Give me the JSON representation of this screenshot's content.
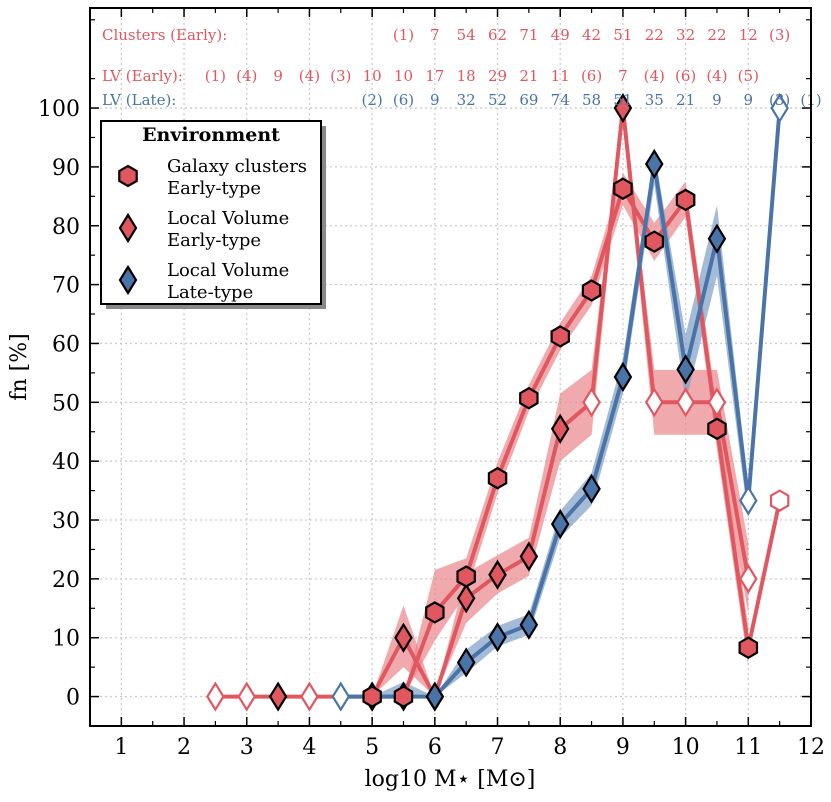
{
  "chart_data": {
    "type": "line",
    "xlabel": "log10 M⋆ [M⊙]",
    "ylabel": "fn [%]",
    "xlim": [
      0.5,
      12
    ],
    "ylim": [
      -5,
      117
    ],
    "x_ticks": [
      1,
      2,
      3,
      4,
      5,
      6,
      7,
      8,
      9,
      10,
      11,
      12
    ],
    "y_ticks": [
      0,
      10,
      20,
      30,
      40,
      50,
      60,
      70,
      80,
      90,
      100
    ],
    "grid": true,
    "legend": {
      "title": "Environment",
      "placement": "upper-left",
      "entries": [
        {
          "marker": "hexagon",
          "line1": "Galaxy clusters",
          "line2": "Early-type",
          "color": "#e05760"
        },
        {
          "marker": "diamond",
          "line1": "Local Volume",
          "line2": "Early-type",
          "color": "#e05760"
        },
        {
          "marker": "diamond",
          "line1": "Local Volume",
          "line2": "Late-type",
          "color": "#4a74a8"
        }
      ]
    },
    "series": [
      {
        "name": "Galaxy clusters Early-type",
        "marker": "hexagon",
        "color": "#e05760",
        "band_color": "#e9868c",
        "points": [
          {
            "x": 5.0,
            "y": 0,
            "filled": true
          },
          {
            "x": 5.5,
            "y": 0,
            "filled": true
          },
          {
            "x": 6.0,
            "y": 14.3,
            "filled": true
          },
          {
            "x": 6.5,
            "y": 20.4,
            "filled": true
          },
          {
            "x": 7.0,
            "y": 37.1,
            "filled": true
          },
          {
            "x": 7.5,
            "y": 50.7,
            "filled": true
          },
          {
            "x": 8.0,
            "y": 61.2,
            "filled": true
          },
          {
            "x": 8.5,
            "y": 69.0,
            "filled": true
          },
          {
            "x": 9.0,
            "y": 86.3,
            "filled": true
          },
          {
            "x": 9.5,
            "y": 77.3,
            "filled": true
          },
          {
            "x": 10.0,
            "y": 84.4,
            "filled": true
          },
          {
            "x": 10.5,
            "y": 45.5,
            "filled": true
          },
          {
            "x": 11.0,
            "y": 8.3,
            "filled": true
          },
          {
            "x": 11.5,
            "y": 33.3,
            "filled": false
          }
        ],
        "band": [
          {
            "x": 5.0,
            "lo": 0,
            "hi": 0
          },
          {
            "x": 5.5,
            "lo": 0,
            "hi": 0
          },
          {
            "x": 6.0,
            "lo": 9.5,
            "hi": 21.5
          },
          {
            "x": 6.5,
            "lo": 17.5,
            "hi": 23.5
          },
          {
            "x": 7.0,
            "lo": 34.5,
            "hi": 39.8
          },
          {
            "x": 7.5,
            "lo": 48.5,
            "hi": 53.0
          },
          {
            "x": 8.0,
            "lo": 58.8,
            "hi": 63.5
          },
          {
            "x": 8.5,
            "lo": 66.5,
            "hi": 71.5
          },
          {
            "x": 9.0,
            "lo": 83.5,
            "hi": 89.0
          },
          {
            "x": 9.5,
            "lo": 74.0,
            "hi": 80.5
          },
          {
            "x": 10.0,
            "lo": 81.5,
            "hi": 87.5
          },
          {
            "x": 10.5,
            "lo": 42.0,
            "hi": 49.0
          },
          {
            "x": 11.0,
            "lo": 5.0,
            "hi": 12.0
          }
        ]
      },
      {
        "name": "Local Volume Early-type",
        "marker": "diamond",
        "color": "#e05760",
        "band_color": "#e9868c",
        "points": [
          {
            "x": 2.5,
            "y": 0,
            "filled": false
          },
          {
            "x": 3.0,
            "y": 0,
            "filled": false
          },
          {
            "x": 3.5,
            "y": 0,
            "filled": true
          },
          {
            "x": 4.0,
            "y": 0,
            "filled": false
          },
          {
            "x": 5.0,
            "y": 0,
            "filled": true
          },
          {
            "x": 5.5,
            "y": 10.0,
            "filled": true
          },
          {
            "x": 6.0,
            "y": 0,
            "filled": true
          },
          {
            "x": 6.5,
            "y": 16.7,
            "filled": true
          },
          {
            "x": 7.0,
            "y": 20.7,
            "filled": true
          },
          {
            "x": 7.5,
            "y": 23.8,
            "filled": true
          },
          {
            "x": 8.0,
            "y": 45.5,
            "filled": true
          },
          {
            "x": 8.5,
            "y": 50.0,
            "filled": false
          },
          {
            "x": 9.0,
            "y": 100.0,
            "filled": true
          },
          {
            "x": 9.5,
            "y": 50.0,
            "filled": false
          },
          {
            "x": 10.0,
            "y": 50.0,
            "filled": false
          },
          {
            "x": 10.5,
            "y": 50.0,
            "filled": false
          },
          {
            "x": 11.0,
            "y": 20.0,
            "filled": false
          }
        ],
        "band": [
          {
            "x": 5.0,
            "lo": 0,
            "hi": 0
          },
          {
            "x": 5.5,
            "lo": 5.0,
            "hi": 15.5
          },
          {
            "x": 6.0,
            "lo": 0,
            "hi": 0
          },
          {
            "x": 6.5,
            "lo": 12.5,
            "hi": 21.0
          },
          {
            "x": 7.0,
            "lo": 17.5,
            "hi": 24.0
          },
          {
            "x": 7.5,
            "lo": 20.5,
            "hi": 27.0
          },
          {
            "x": 8.0,
            "lo": 40.0,
            "hi": 51.5
          },
          {
            "x": 8.5,
            "lo": 44.5,
            "hi": 55.5
          },
          {
            "x": 9.0,
            "lo": 97.5,
            "hi": 100.0
          },
          {
            "x": 9.5,
            "lo": 44.5,
            "hi": 55.5
          },
          {
            "x": 10.0,
            "lo": 44.5,
            "hi": 55.5
          },
          {
            "x": 10.5,
            "lo": 44.5,
            "hi": 55.5
          },
          {
            "x": 11.0,
            "lo": 14.0,
            "hi": 26.0
          }
        ]
      },
      {
        "name": "Local Volume Late-type",
        "marker": "diamond",
        "color": "#4a74a8",
        "band_color": "#7e9ec8",
        "points": [
          {
            "x": 4.5,
            "y": 0,
            "filled": false
          },
          {
            "x": 5.0,
            "y": 0,
            "filled": true
          },
          {
            "x": 5.5,
            "y": 0,
            "filled": true
          },
          {
            "x": 6.0,
            "y": 0,
            "filled": true
          },
          {
            "x": 6.5,
            "y": 5.8,
            "filled": true
          },
          {
            "x": 7.0,
            "y": 10.1,
            "filled": true
          },
          {
            "x": 7.5,
            "y": 12.2,
            "filled": true
          },
          {
            "x": 8.0,
            "y": 29.3,
            "filled": true
          },
          {
            "x": 8.5,
            "y": 35.3,
            "filled": true
          },
          {
            "x": 9.0,
            "y": 54.3,
            "filled": true
          },
          {
            "x": 9.5,
            "y": 90.5,
            "filled": true
          },
          {
            "x": 10.0,
            "y": 55.6,
            "filled": true
          },
          {
            "x": 10.5,
            "y": 77.8,
            "filled": true
          },
          {
            "x": 11.0,
            "y": 33.3,
            "filled": false
          },
          {
            "x": 11.5,
            "y": 100.0,
            "filled": false
          }
        ],
        "band": [
          {
            "x": 5.0,
            "lo": 0,
            "hi": 0
          },
          {
            "x": 5.5,
            "lo": 0,
            "hi": 2.5
          },
          {
            "x": 6.0,
            "lo": 0,
            "hi": 0
          },
          {
            "x": 6.5,
            "lo": 4.0,
            "hi": 8.0
          },
          {
            "x": 7.0,
            "lo": 8.5,
            "hi": 12.0
          },
          {
            "x": 7.5,
            "lo": 10.5,
            "hi": 14.0
          },
          {
            "x": 8.0,
            "lo": 27.0,
            "hi": 31.5
          },
          {
            "x": 8.5,
            "lo": 32.5,
            "hi": 38.0
          },
          {
            "x": 9.0,
            "lo": 51.5,
            "hi": 57.5
          },
          {
            "x": 9.5,
            "lo": 87.0,
            "hi": 92.5
          },
          {
            "x": 10.0,
            "lo": 50.0,
            "hi": 61.5
          },
          {
            "x": 10.5,
            "lo": 71.5,
            "hi": 83.5
          },
          {
            "x": 11.0,
            "lo": 30.0,
            "hi": 36.0
          }
        ]
      }
    ],
    "count_rows": [
      {
        "label": "Clusters (Early):",
        "color": "#e05760",
        "values": [
          {
            "x": 5.5,
            "text": "(1)"
          },
          {
            "x": 6.0,
            "text": "7"
          },
          {
            "x": 6.5,
            "text": "54"
          },
          {
            "x": 7.0,
            "text": "62"
          },
          {
            "x": 7.5,
            "text": "71"
          },
          {
            "x": 8.0,
            "text": "49"
          },
          {
            "x": 8.5,
            "text": "42"
          },
          {
            "x": 9.0,
            "text": "51"
          },
          {
            "x": 9.5,
            "text": "22"
          },
          {
            "x": 10.0,
            "text": "32"
          },
          {
            "x": 10.5,
            "text": "22"
          },
          {
            "x": 11.0,
            "text": "12"
          },
          {
            "x": 11.5,
            "text": "(3)"
          }
        ]
      },
      {
        "label": "LV (Early):",
        "color": "#e05760",
        "values": [
          {
            "x": 2.5,
            "text": "(1)"
          },
          {
            "x": 3.0,
            "text": "(4)"
          },
          {
            "x": 3.5,
            "text": "9"
          },
          {
            "x": 4.0,
            "text": "(4)"
          },
          {
            "x": 4.5,
            "text": "(3)"
          },
          {
            "x": 5.0,
            "text": "10"
          },
          {
            "x": 5.5,
            "text": "10"
          },
          {
            "x": 6.0,
            "text": "17"
          },
          {
            "x": 6.5,
            "text": "18"
          },
          {
            "x": 7.0,
            "text": "29"
          },
          {
            "x": 7.5,
            "text": "21"
          },
          {
            "x": 8.0,
            "text": "11"
          },
          {
            "x": 8.5,
            "text": "(6)"
          },
          {
            "x": 9.0,
            "text": "7"
          },
          {
            "x": 9.5,
            "text": "(4)"
          },
          {
            "x": 10.0,
            "text": "(6)"
          },
          {
            "x": 10.5,
            "text": "(4)"
          },
          {
            "x": 11.0,
            "text": "(5)"
          }
        ]
      },
      {
        "label": "LV (Late):",
        "color": "#4a74a8",
        "values": [
          {
            "x": 5.0,
            "text": "(2)"
          },
          {
            "x": 5.5,
            "text": "(6)"
          },
          {
            "x": 6.0,
            "text": "9"
          },
          {
            "x": 6.5,
            "text": "32"
          },
          {
            "x": 7.0,
            "text": "52"
          },
          {
            "x": 7.5,
            "text": "69"
          },
          {
            "x": 8.0,
            "text": "74"
          },
          {
            "x": 8.5,
            "text": "58"
          },
          {
            "x": 9.0,
            "text": "51"
          },
          {
            "x": 9.5,
            "text": "35"
          },
          {
            "x": 10.0,
            "text": "21"
          },
          {
            "x": 10.5,
            "text": "9"
          },
          {
            "x": 11.0,
            "text": "9"
          },
          {
            "x": 11.5,
            "text": "(3)"
          },
          {
            "x": 12.0,
            "text": "(1)"
          }
        ]
      }
    ]
  }
}
